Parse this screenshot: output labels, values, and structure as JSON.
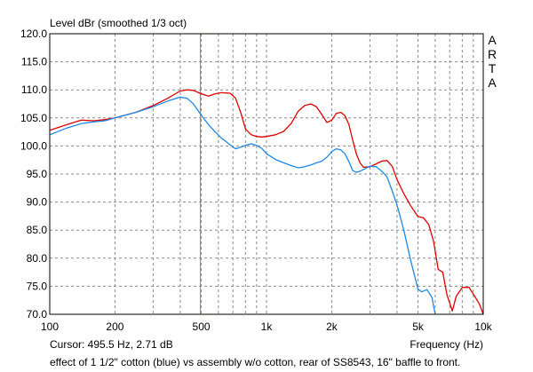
{
  "chart_data": {
    "type": "line",
    "title": "Level dBr (smoothed 1/3 oct)",
    "brand_letters": [
      "A",
      "R",
      "T",
      "A"
    ],
    "xlabel": "Frequency (Hz)",
    "x_scale": "log",
    "xlim": [
      100,
      10000
    ],
    "ylim": [
      70,
      120
    ],
    "grid": true,
    "x_ticks": [
      {
        "value": 100,
        "label": "100"
      },
      {
        "value": 200,
        "label": "200"
      },
      {
        "value": 500,
        "label": "500"
      },
      {
        "value": 1000,
        "label": "1k"
      },
      {
        "value": 2000,
        "label": "2k"
      },
      {
        "value": 5000,
        "label": "5k"
      },
      {
        "value": 10000,
        "label": "10k"
      }
    ],
    "y_ticks": [
      {
        "value": 120,
        "label": "120.0"
      },
      {
        "value": 115,
        "label": "115.0"
      },
      {
        "value": 110,
        "label": "110.0"
      },
      {
        "value": 105,
        "label": "105.0"
      },
      {
        "value": 100,
        "label": "100.0"
      },
      {
        "value": 95,
        "label": "95.0"
      },
      {
        "value": 90,
        "label": "90.0"
      },
      {
        "value": 85,
        "label": "85.0"
      },
      {
        "value": 80,
        "label": "80.0"
      },
      {
        "value": 75,
        "label": "75.0"
      },
      {
        "value": 70,
        "label": "70.0"
      }
    ],
    "cursor": {
      "x": 495.5,
      "text": "Cursor: 495.5 Hz, 2.71 dB",
      "color": "#999900"
    },
    "caption": "effect of 1 1/2\" cotton (blue) vs assembly w/o cotton, rear of SS8543, 16\" baffle to front.",
    "series": [
      {
        "color": "#dd0000",
        "x": [
          100,
          120,
          140,
          160,
          180,
          200,
          250,
          300,
          350,
          400,
          430,
          460,
          500,
          540,
          580,
          620,
          680,
          720,
          760,
          800,
          850,
          900,
          950,
          1000,
          1100,
          1200,
          1300,
          1400,
          1500,
          1600,
          1700,
          1800,
          1900,
          2000,
          2100,
          2200,
          2300,
          2400,
          2500,
          2600,
          2700,
          2800,
          3000,
          3200,
          3400,
          3600,
          3800,
          4000,
          4300,
          4600,
          5000,
          5300,
          5600,
          5900,
          6200,
          6500,
          6800,
          7200,
          7500,
          8000,
          8600,
          9200,
          9600,
          10000
        ],
        "y": [
          102.8,
          103.8,
          104.6,
          104.5,
          104.7,
          105.0,
          106.0,
          107.2,
          108.5,
          109.8,
          110.0,
          109.9,
          109.3,
          108.9,
          109.3,
          109.5,
          109.4,
          108.5,
          106.0,
          103.0,
          102.0,
          101.7,
          101.6,
          101.7,
          102.0,
          102.6,
          104.0,
          106.2,
          107.2,
          107.5,
          107.0,
          105.6,
          104.2,
          104.6,
          105.8,
          106.0,
          105.4,
          103.8,
          101.0,
          98.5,
          97.0,
          96.2,
          96.3,
          96.8,
          97.3,
          97.4,
          96.4,
          94.0,
          91.5,
          89.5,
          87.4,
          87.2,
          86.0,
          83.0,
          78.0,
          77.5,
          73.5,
          70.6,
          73.2,
          74.8,
          74.8,
          73.0,
          71.8,
          70.0
        ]
      },
      {
        "color": "#1e88e5",
        "x": [
          100,
          120,
          140,
          160,
          180,
          200,
          250,
          300,
          350,
          400,
          430,
          460,
          500,
          540,
          580,
          620,
          680,
          720,
          760,
          800,
          850,
          900,
          950,
          1000,
          1100,
          1200,
          1300,
          1400,
          1500,
          1600,
          1700,
          1800,
          1900,
          2000,
          2100,
          2200,
          2300,
          2400,
          2500,
          2600,
          2700,
          2800,
          3000,
          3200,
          3400,
          3600,
          3800,
          4000,
          4300,
          4600,
          5000,
          5200,
          5500,
          5800,
          6000
        ],
        "y": [
          102.0,
          103.2,
          104.0,
          104.3,
          104.5,
          105.0,
          106.0,
          107.0,
          108.0,
          108.7,
          108.5,
          107.5,
          105.5,
          103.8,
          102.5,
          101.4,
          100.2,
          99.5,
          99.8,
          100.1,
          100.4,
          100.1,
          99.6,
          98.6,
          97.6,
          97.0,
          96.5,
          96.1,
          96.3,
          96.6,
          97.0,
          97.3,
          98.0,
          99.0,
          99.5,
          99.3,
          98.6,
          97.2,
          95.6,
          95.3,
          95.5,
          95.8,
          96.4,
          96.3,
          95.5,
          94.5,
          92.0,
          89.5,
          85.0,
          80.0,
          74.5,
          74.0,
          74.4,
          73.0,
          70.0
        ]
      }
    ]
  }
}
